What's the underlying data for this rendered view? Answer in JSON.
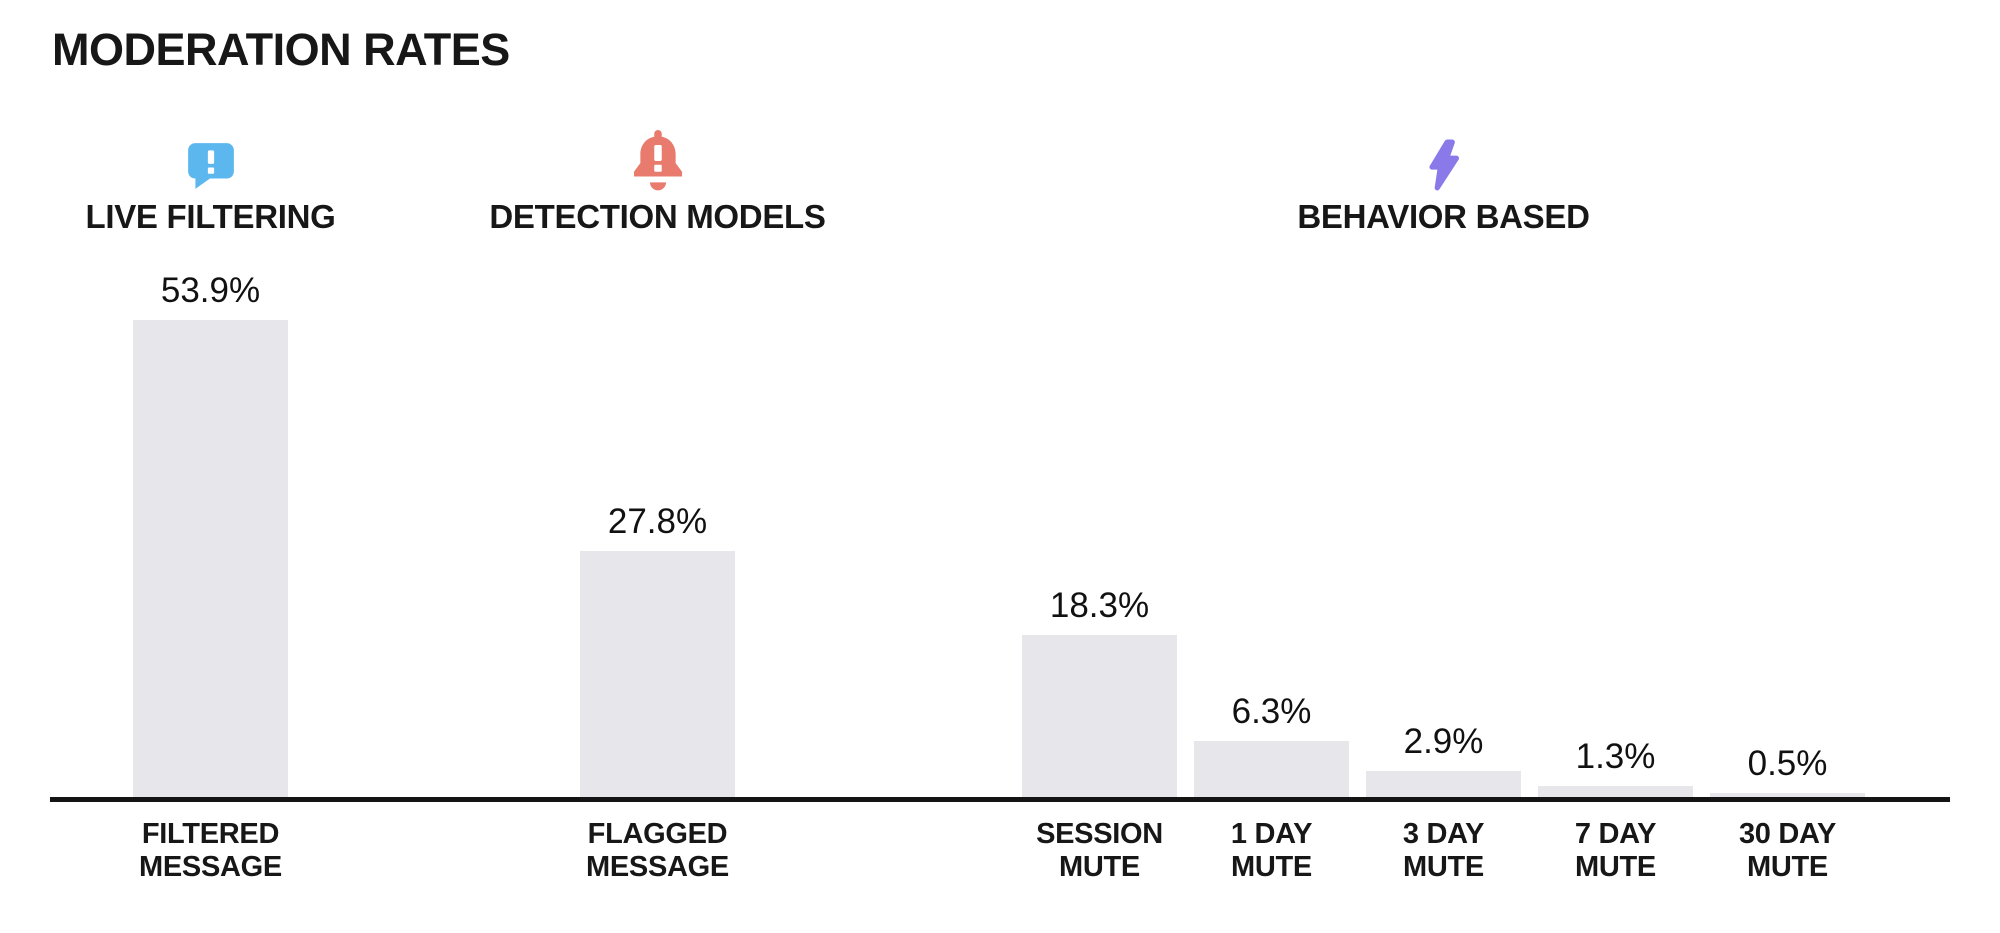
{
  "title": "MODERATION RATES",
  "colors": {
    "bar": "#e7e6ea",
    "axis": "#141414",
    "text": "#171717",
    "live_filtering_icon": "#5db7ef",
    "detection_models_icon": "#e97b6e",
    "behavior_based_icon": "#8a7ae9"
  },
  "chart_data": {
    "type": "bar",
    "title": "MODERATION RATES",
    "unit": "%",
    "ylim": [
      0,
      60
    ],
    "grid": false,
    "legend": "none",
    "categories": [
      "FILTERED MESSAGE",
      "FLAGGED MESSAGE",
      "SESSION MUTE",
      "1 DAY MUTE",
      "3 DAY MUTE",
      "7 DAY MUTE",
      "30 DAY MUTE"
    ],
    "values": [
      53.9,
      27.8,
      18.3,
      6.3,
      2.9,
      1.3,
      0.5
    ],
    "groups": [
      {
        "name": "LIVE FILTERING",
        "icon": "chat-alert-icon",
        "icon_color": "#5db7ef",
        "bars": [
          {
            "category": "FILTERED\nMESSAGE",
            "value": 53.9,
            "label": "53.9%"
          }
        ]
      },
      {
        "name": "DETECTION MODELS",
        "icon": "bell-alert-icon",
        "icon_color": "#e97b6e",
        "bars": [
          {
            "category": "FLAGGED\nMESSAGE",
            "value": 27.8,
            "label": "27.8%"
          }
        ]
      },
      {
        "name": "BEHAVIOR BASED",
        "icon": "lightning-bolt-icon",
        "icon_color": "#8a7ae9",
        "bars": [
          {
            "category": "SESSION\nMUTE",
            "value": 18.3,
            "label": "18.3%"
          },
          {
            "category": "1 DAY\nMUTE",
            "value": 6.3,
            "label": "6.3%"
          },
          {
            "category": "3 DAY\nMUTE",
            "value": 2.9,
            "label": "2.9%"
          },
          {
            "category": "7 DAY\nMUTE",
            "value": 1.3,
            "label": "1.3%"
          },
          {
            "category": "30 DAY\nMUTE",
            "value": 0.5,
            "label": "0.5%"
          }
        ]
      }
    ]
  }
}
